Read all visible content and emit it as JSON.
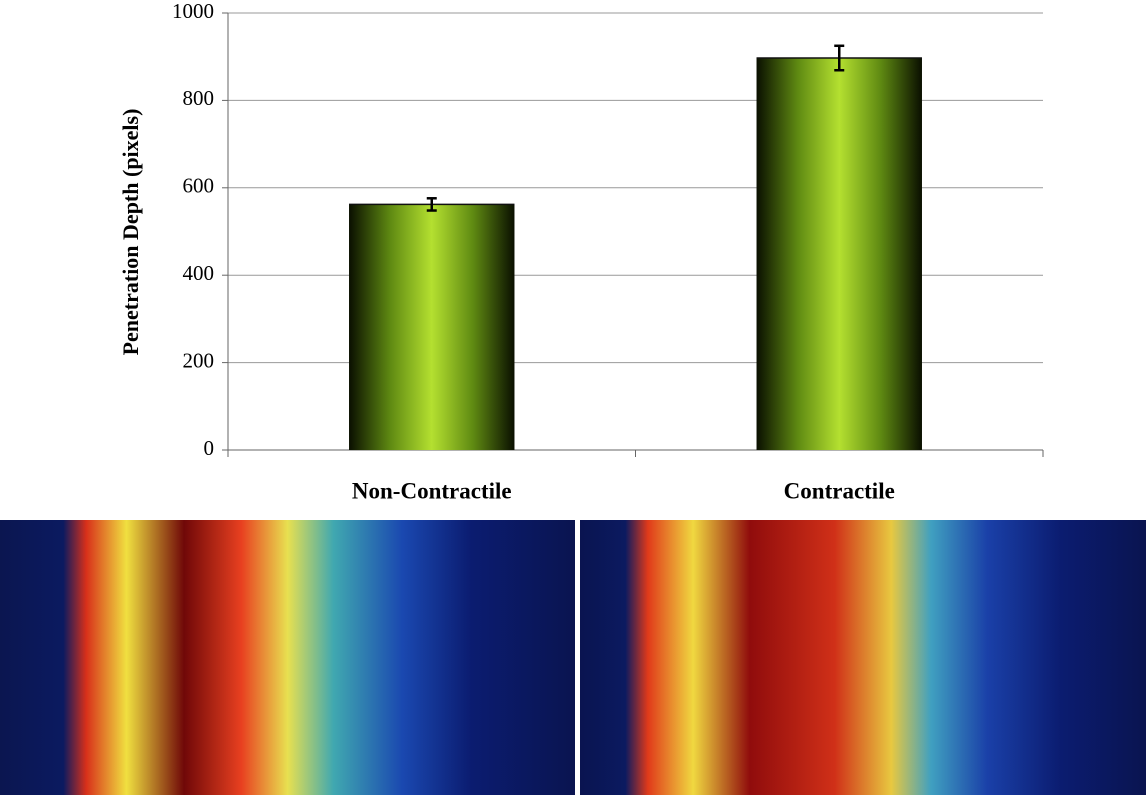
{
  "chart_data": {
    "type": "bar",
    "y_label": "Penetration Depth (pixels)",
    "categories": [
      "Non-Contractile",
      "Contractile"
    ],
    "values": [
      562,
      897
    ],
    "errors": [
      14,
      28
    ],
    "ylim": [
      0,
      1000
    ],
    "yticks": [
      0,
      200,
      400,
      600,
      800,
      1000
    ],
    "grid": true
  }
}
